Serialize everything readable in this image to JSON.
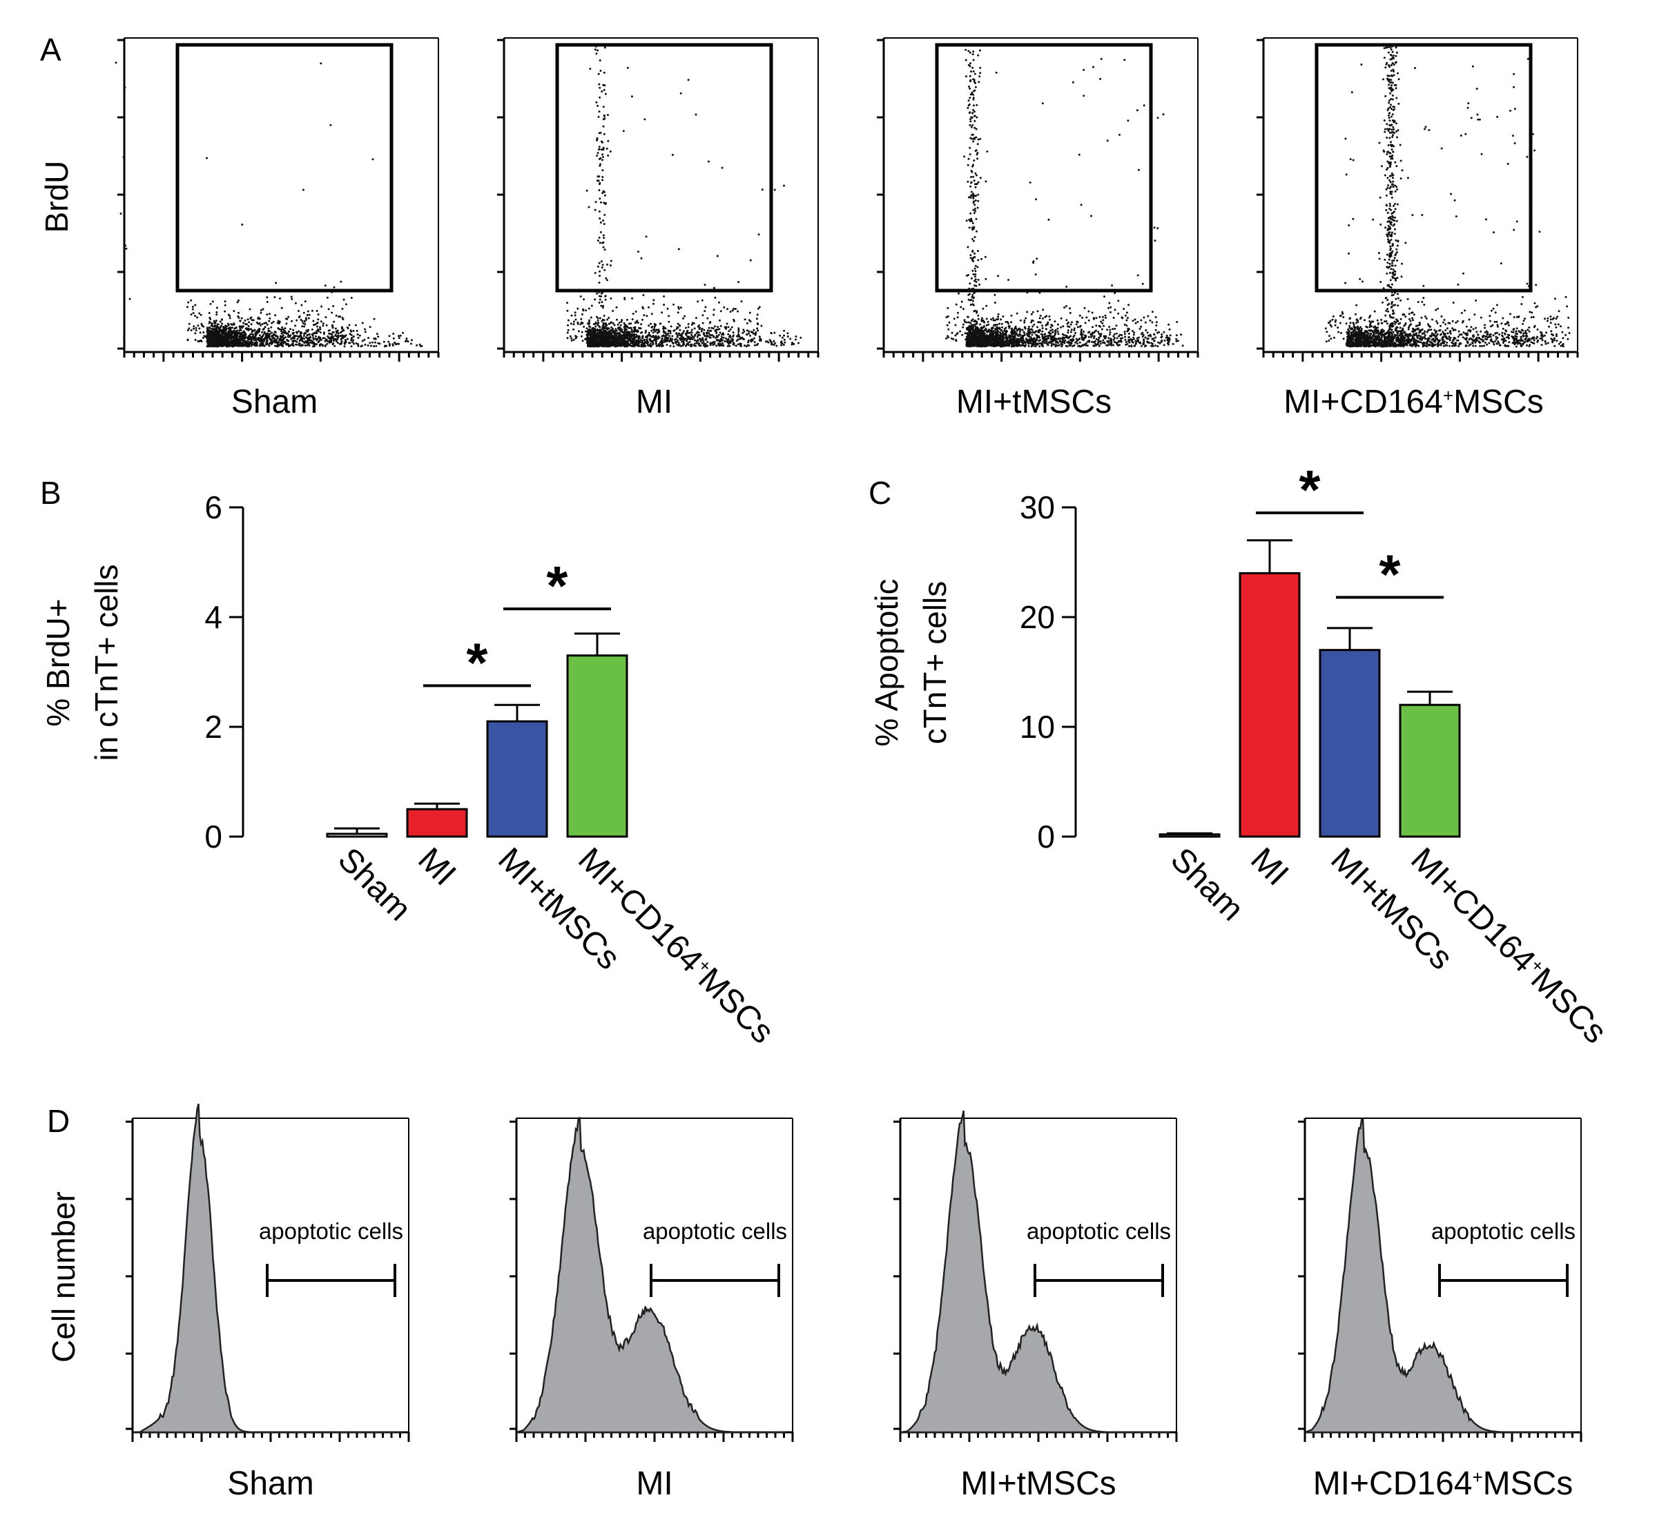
{
  "panel_letters": {
    "a": "A",
    "b": "B",
    "c": "C",
    "d": "D"
  },
  "panel_a": {
    "ylabel": "BrdU",
    "plots": [
      {
        "label": "Sham",
        "gated_density": 0.02
      },
      {
        "label": "MI",
        "gated_density": 0.35
      },
      {
        "label": "MI+tMSCs",
        "gated_density": 0.6
      },
      {
        "label": "MI+CD164",
        "label_sup": "+",
        "label_tail": "MSCs",
        "gated_density": 1.0
      }
    ]
  },
  "panel_d": {
    "ylabel": "Cell number",
    "gate_label": "apoptotic cells",
    "plots": [
      {
        "label": "Sham"
      },
      {
        "label": "MI"
      },
      {
        "label": "MI+tMSCs"
      },
      {
        "label": "MI+CD164",
        "label_sup": "+",
        "label_tail": "MSCs"
      }
    ]
  },
  "chart_data": [
    {
      "type": "bar",
      "panel": "B",
      "ylabel_line1": "% BrdU+",
      "ylabel_line2": "in cTnT+ cells",
      "ylim": [
        0,
        6
      ],
      "yticks": [
        0,
        2,
        4,
        6
      ],
      "categories": [
        "Sham",
        "MI",
        "MI+tMSCs",
        "MI+CD164+MSCs"
      ],
      "category_labels": [
        {
          "main": "Sham",
          "sup": "",
          "tail": ""
        },
        {
          "main": "MI",
          "sup": "",
          "tail": ""
        },
        {
          "main": "MI+tMSCs",
          "sup": "",
          "tail": ""
        },
        {
          "main": "MI+CD164",
          "sup": "+",
          "tail": "MSCs"
        }
      ],
      "values": [
        0.05,
        0.5,
        2.1,
        3.3
      ],
      "errors": [
        0.1,
        0.1,
        0.3,
        0.4
      ],
      "colors": [
        "#ffffff",
        "#e8202a",
        "#3a54a4",
        "#6abf45"
      ],
      "significance": [
        {
          "from": 1,
          "to": 2,
          "level": 2.75,
          "symbol": "*"
        },
        {
          "from": 2,
          "to": 3,
          "level": 4.15,
          "symbol": "*"
        }
      ]
    },
    {
      "type": "bar",
      "panel": "C",
      "ylabel_line1": "% Apoptotic",
      "ylabel_line2": "cTnT+ cells",
      "ylim": [
        0,
        30
      ],
      "yticks": [
        0,
        10,
        20,
        30
      ],
      "categories": [
        "Sham",
        "MI",
        "MI+tMSCs",
        "MI+CD164+MSCs"
      ],
      "category_labels": [
        {
          "main": "Sham",
          "sup": "",
          "tail": ""
        },
        {
          "main": "MI",
          "sup": "",
          "tail": ""
        },
        {
          "main": "MI+tMSCs",
          "sup": "",
          "tail": ""
        },
        {
          "main": "MI+CD164",
          "sup": "+",
          "tail": "MSCs"
        }
      ],
      "values": [
        0.2,
        24,
        17,
        12
      ],
      "errors": [
        0.1,
        3,
        2,
        1.2
      ],
      "colors": [
        "#ffffff",
        "#e8202a",
        "#3a54a4",
        "#6abf45"
      ],
      "significance": [
        {
          "from": 1,
          "to": 2,
          "level": 29.5,
          "symbol": "*"
        },
        {
          "from": 2,
          "to": 3,
          "level": 21.8,
          "symbol": "*"
        }
      ]
    }
  ]
}
